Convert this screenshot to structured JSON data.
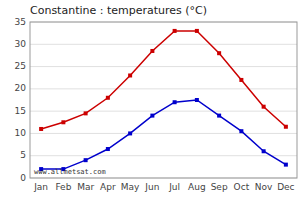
{
  "chart_data": {
    "type": "line",
    "title": "Constantine : temperatures (°C)",
    "categories": [
      "Jan",
      "Feb",
      "Mar",
      "Apr",
      "May",
      "Jun",
      "Jul",
      "Aug",
      "Sep",
      "Oct",
      "Nov",
      "Dec"
    ],
    "series": [
      {
        "color": "#cc0000",
        "marker": "square",
        "values": [
          11,
          12.5,
          14.5,
          18,
          23,
          28.5,
          33,
          33,
          28,
          22,
          16,
          11.5
        ]
      },
      {
        "color": "#0000cc",
        "marker": "square",
        "values": [
          2,
          2,
          4,
          6.5,
          10,
          14,
          17,
          17.5,
          14,
          10.5,
          6,
          3
        ]
      }
    ],
    "ylim": [
      0,
      35
    ],
    "yticks": [
      0,
      5,
      10,
      15,
      20,
      25,
      30,
      35
    ],
    "grid": true,
    "annotation": "www.allmetsat.com"
  }
}
